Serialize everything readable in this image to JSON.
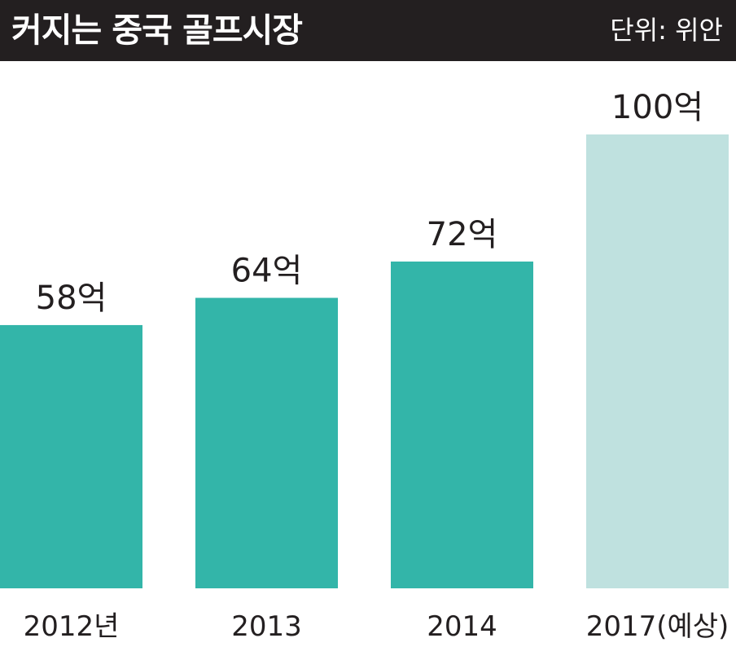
{
  "header": {
    "title": "커지는 중국 골프시장",
    "unit": "단위: 위안"
  },
  "colors": {
    "header_bg": "#231f20",
    "bar_actual": "#33b5a9",
    "bar_forecast": "#bfe1df"
  },
  "chart_data": {
    "type": "bar",
    "title": "커지는 중국 골프시장",
    "unit_label": "단위: 위안",
    "categories": [
      "2012년",
      "2013",
      "2014",
      "2017(예상)"
    ],
    "values": [
      58,
      64,
      72,
      100
    ],
    "value_labels": [
      "58억",
      "64억",
      "72억",
      "100억"
    ],
    "forecast": [
      false,
      false,
      false,
      true
    ],
    "ylim": [
      0,
      100
    ],
    "grid": false,
    "legend": "none"
  }
}
